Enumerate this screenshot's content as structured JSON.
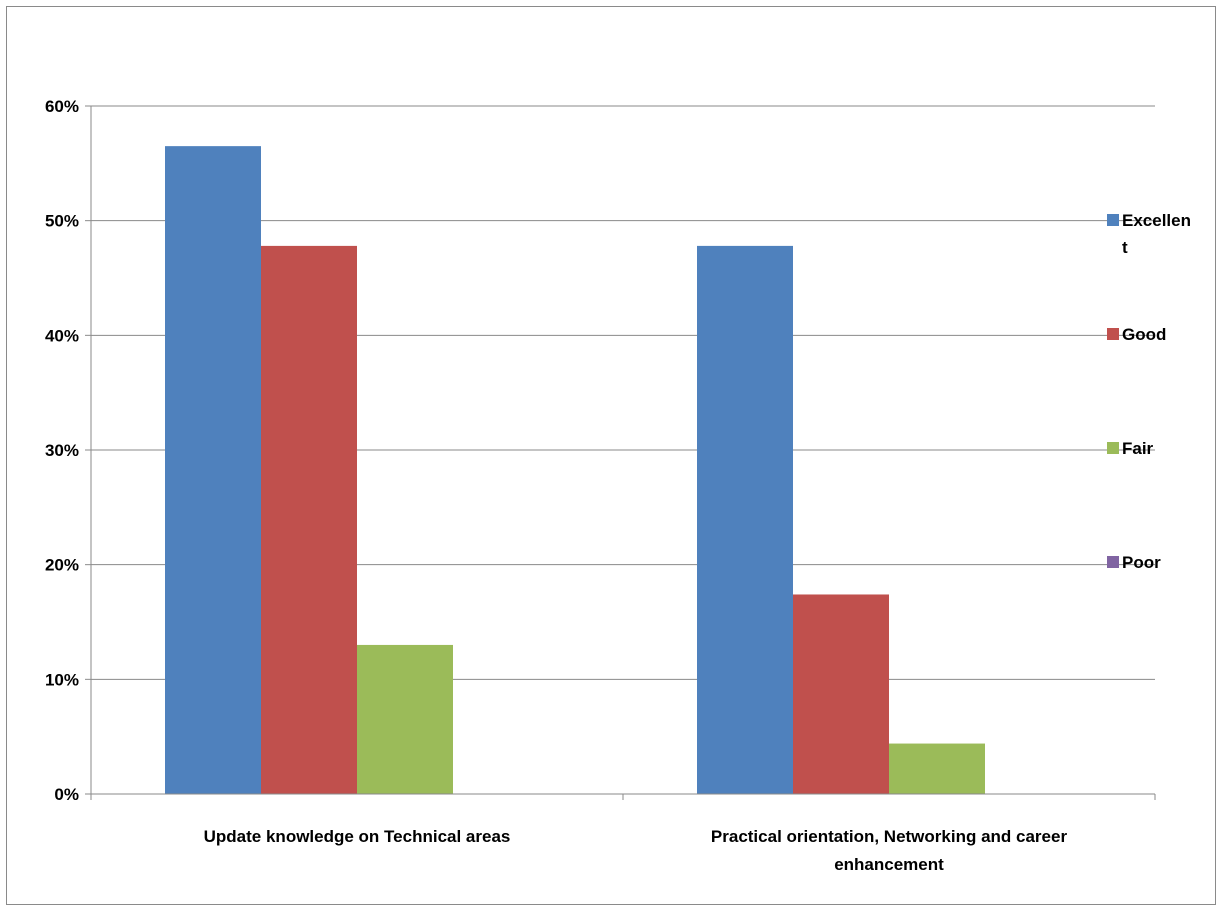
{
  "chart_data": {
    "type": "bar",
    "title": "",
    "xlabel": "",
    "ylabel": "",
    "categories": [
      [
        "Update knowledge on  Technical areas"
      ],
      [
        "Practical orientation, Networking and career",
        "enhancement"
      ]
    ],
    "series": [
      {
        "name": "Excellent",
        "legend_lines": [
          "Excellen",
          "t"
        ],
        "color": "#4f81bd",
        "values": [
          56.5,
          47.8
        ]
      },
      {
        "name": "Good",
        "legend_lines": [
          "Good"
        ],
        "color": "#c0504d",
        "values": [
          47.8,
          17.4
        ]
      },
      {
        "name": "Fair",
        "legend_lines": [
          "Fair"
        ],
        "color": "#9bbb59",
        "values": [
          13.0,
          4.4
        ]
      },
      {
        "name": "Poor",
        "legend_lines": [
          "Poor"
        ],
        "color": "#8064a2",
        "values": [
          0,
          0
        ]
      }
    ],
    "ylim": [
      0,
      60
    ],
    "yticks": [
      0,
      10,
      20,
      30,
      40,
      50,
      60
    ],
    "ytick_labels": [
      "0%",
      "10%",
      "20%",
      "30%",
      "40%",
      "50%",
      "60%"
    ],
    "grid": true,
    "legend_position": "right"
  }
}
